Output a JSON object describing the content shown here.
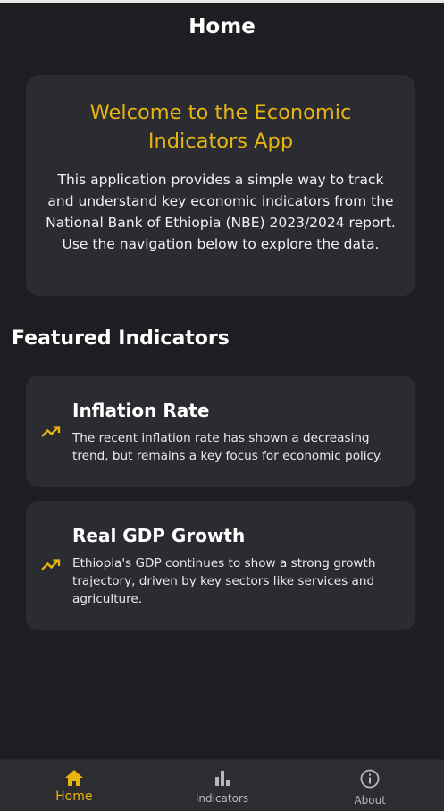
{
  "header": {
    "title": "Home"
  },
  "welcome": {
    "title": "Welcome to the Economic Indicators App",
    "text": "This application provides a simple way to track and understand key economic indicators from the National Bank of Ethiopia (NBE) 2023/2024 report. Use the navigation below to explore the data."
  },
  "featured": {
    "title": "Featured Indicators",
    "items": [
      {
        "name": "Inflation Rate",
        "description": "The recent inflation rate has shown a decreasing trend, but remains a key focus for economic policy.",
        "icon": "trending-up-icon"
      },
      {
        "name": "Real GDP Growth",
        "description": "Ethiopia's GDP continues to show a strong growth trajectory, driven by key sectors like services and agriculture.",
        "icon": "trending-up-icon"
      }
    ]
  },
  "nav": {
    "items": [
      {
        "label": "Home",
        "icon": "home-icon",
        "active": true
      },
      {
        "label": "Indicators",
        "icon": "bar-chart-icon",
        "active": false
      },
      {
        "label": "About",
        "icon": "info-icon",
        "active": false
      }
    ]
  },
  "colors": {
    "background": "#1c1e22",
    "card": "#2a2c31",
    "accent": "#e8b40f",
    "nav": "#2b2d31"
  }
}
